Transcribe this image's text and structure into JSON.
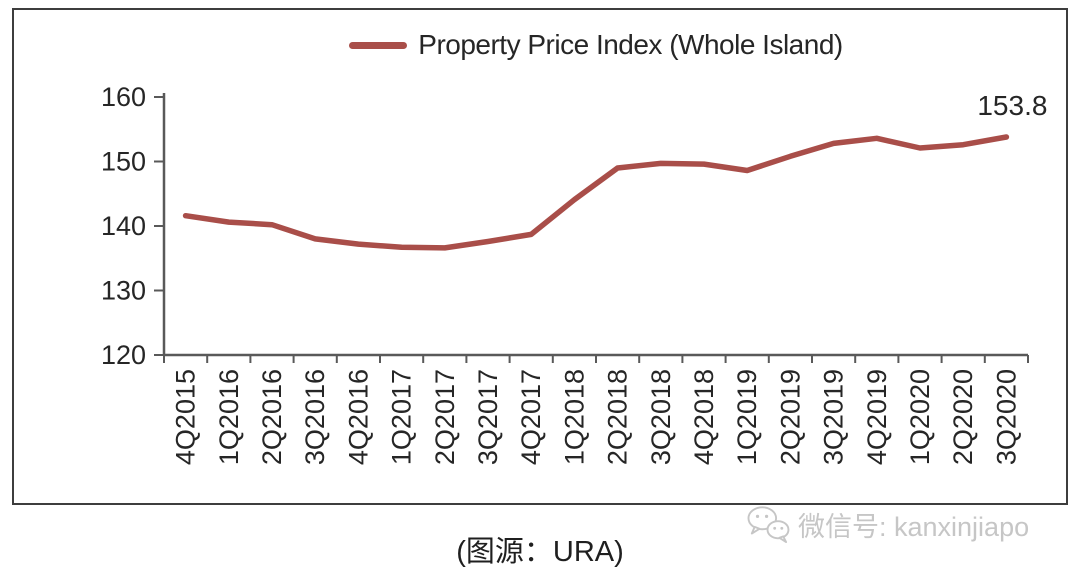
{
  "legend": {
    "label": "Property Price Index (Whole Island)"
  },
  "caption": {
    "text": "(图源：URA)"
  },
  "watermark": {
    "icon": "wechat-icon",
    "text": "微信号: kanxinjiapo"
  },
  "chart_data": {
    "type": "line",
    "title": "",
    "series_name": "Property Price Index (Whole Island)",
    "categories": [
      "4Q2015",
      "1Q2016",
      "2Q2016",
      "3Q2016",
      "4Q2016",
      "1Q2017",
      "2Q2017",
      "3Q2017",
      "4Q2017",
      "1Q2018",
      "2Q2018",
      "3Q2018",
      "4Q2018",
      "1Q2019",
      "2Q2019",
      "3Q2019",
      "4Q2019",
      "1Q2020",
      "2Q2020",
      "3Q2020"
    ],
    "values": [
      141.6,
      140.6,
      140.2,
      138.0,
      137.2,
      136.7,
      136.6,
      137.6,
      138.7,
      144.1,
      149.0,
      149.7,
      149.6,
      148.6,
      150.8,
      152.8,
      153.6,
      152.1,
      152.6,
      153.8
    ],
    "ylim": [
      120,
      160
    ],
    "yticks": [
      120,
      130,
      140,
      150,
      160
    ],
    "grid": false,
    "legend_position": "top-center",
    "last_point_label": "153.8",
    "line_color": "#a94e49",
    "axis_color": "#595959",
    "text_color": "#262626",
    "watermark_color": "#c6c6c6"
  }
}
